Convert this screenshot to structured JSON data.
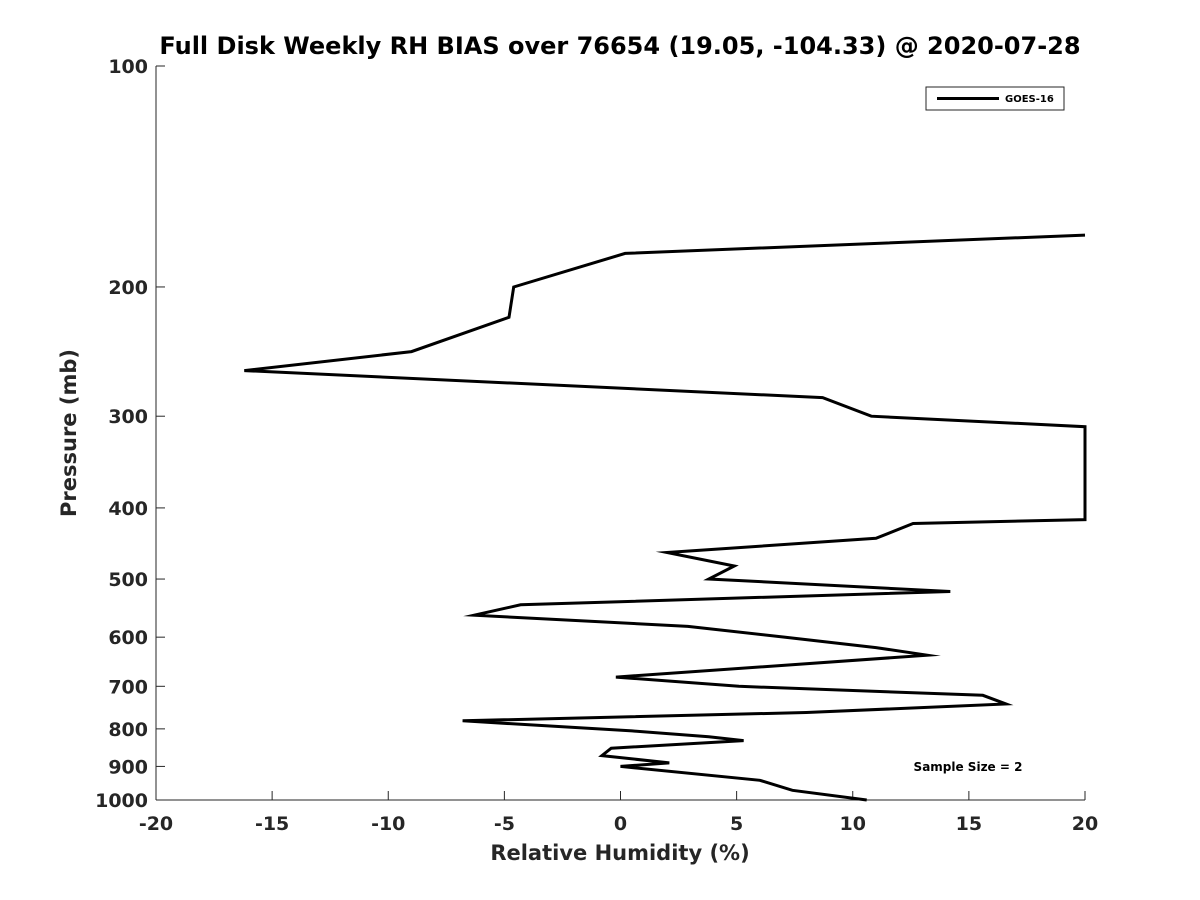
{
  "chart_data": {
    "type": "line",
    "title": "Full Disk Weekly RH BIAS over 76654 (19.05, -104.33) @ 2020-07-28",
    "xlabel": "Relative Humidity (%)",
    "ylabel": "Pressure (mb)",
    "xlim": [
      -20,
      20
    ],
    "ylim": [
      1000,
      100
    ],
    "yscale": "log",
    "grid": false,
    "xticks": [
      -20,
      -15,
      -10,
      -5,
      0,
      5,
      10,
      15,
      20
    ],
    "xtick_labels": [
      "-20",
      "-15",
      "-10",
      "-5",
      "0",
      "5",
      "10",
      "15",
      "20"
    ],
    "yticks": [
      100,
      200,
      300,
      400,
      500,
      600,
      700,
      800,
      900,
      1000
    ],
    "ytick_labels": [
      "100",
      "200",
      "300",
      "400",
      "500",
      "600",
      "700",
      "800",
      "900",
      "1000"
    ],
    "legend_position": "top-right",
    "annotation": "Sample Size = 2",
    "series": [
      {
        "name": "GOES-16",
        "color": "#000000",
        "points": [
          {
            "x": 20,
            "y": 170
          },
          {
            "x": 0.2,
            "y": 180
          },
          {
            "x": -4.6,
            "y": 200
          },
          {
            "x": -4.8,
            "y": 220
          },
          {
            "x": -9.0,
            "y": 245
          },
          {
            "x": -16.2,
            "y": 260
          },
          {
            "x": 8.7,
            "y": 283
          },
          {
            "x": 10.8,
            "y": 300
          },
          {
            "x": 20,
            "y": 310
          },
          {
            "x": 20,
            "y": 415
          },
          {
            "x": 12.6,
            "y": 420
          },
          {
            "x": 11.0,
            "y": 440
          },
          {
            "x": 2.0,
            "y": 460
          },
          {
            "x": 4.9,
            "y": 480
          },
          {
            "x": 3.8,
            "y": 500
          },
          {
            "x": 14.2,
            "y": 520
          },
          {
            "x": -4.3,
            "y": 542
          },
          {
            "x": -6.3,
            "y": 560
          },
          {
            "x": 2.9,
            "y": 580
          },
          {
            "x": 7.1,
            "y": 600
          },
          {
            "x": 11.0,
            "y": 620
          },
          {
            "x": 13.2,
            "y": 635
          },
          {
            "x": -0.2,
            "y": 680
          },
          {
            "x": 5.1,
            "y": 700
          },
          {
            "x": 15.6,
            "y": 720
          },
          {
            "x": 16.6,
            "y": 740
          },
          {
            "x": 8.0,
            "y": 760
          },
          {
            "x": -6.8,
            "y": 780
          },
          {
            "x": 0.5,
            "y": 805
          },
          {
            "x": 3.8,
            "y": 820
          },
          {
            "x": 5.3,
            "y": 830
          },
          {
            "x": -0.4,
            "y": 850
          },
          {
            "x": -0.8,
            "y": 870
          },
          {
            "x": 2.1,
            "y": 890
          },
          {
            "x": 0.0,
            "y": 900
          },
          {
            "x": 6.0,
            "y": 940
          },
          {
            "x": 7.4,
            "y": 970
          },
          {
            "x": 10.6,
            "y": 1000
          }
        ]
      }
    ]
  }
}
